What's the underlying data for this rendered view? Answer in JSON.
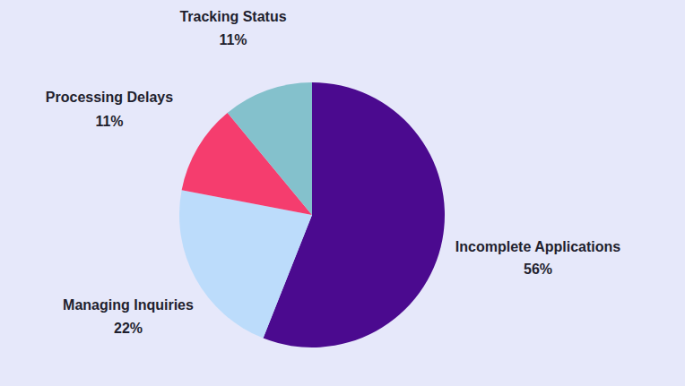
{
  "chart_data": {
    "type": "pie",
    "categories": [
      "Incomplete Applications",
      "Managing Inquiries",
      "Processing Delays",
      "Tracking Status"
    ],
    "values": [
      56,
      22,
      11,
      11
    ],
    "value_labels": [
      "56%",
      "22%",
      "11%",
      "11%"
    ],
    "colors": [
      "#4b0a8f",
      "#bcdcfb",
      "#f53d6e",
      "#84c1cc"
    ],
    "data_labels": true
  }
}
